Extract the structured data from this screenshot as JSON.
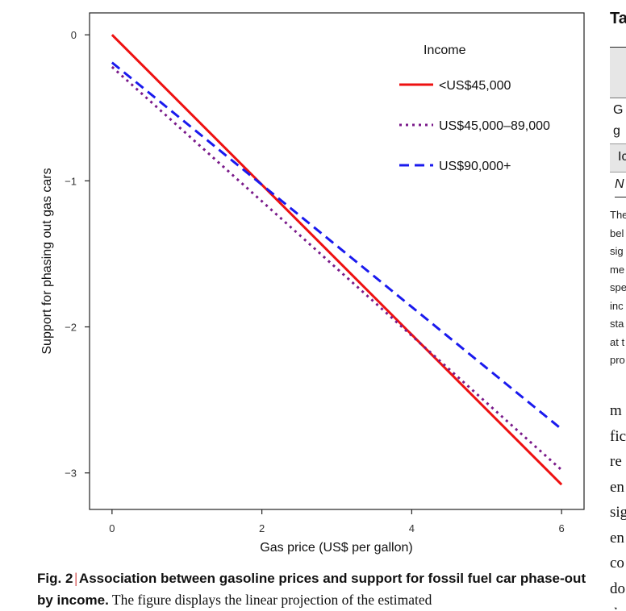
{
  "chart_data": {
    "type": "line",
    "title": "",
    "xlabel": "Gas price (US$ per gallon)",
    "ylabel": "Support for phasing out gas cars",
    "xlim": [
      -0.3,
      6.3
    ],
    "ylim": [
      -3.25,
      0.15
    ],
    "xticks": [
      0,
      2,
      4,
      6
    ],
    "yticks": [
      0,
      -1,
      -2,
      -3
    ],
    "x": [
      0,
      6
    ],
    "grid": false,
    "legend": {
      "title": "Income",
      "placement": "top-right (inside plot)"
    },
    "series": [
      {
        "name": "<US$45,000",
        "values": [
          0.0,
          -3.08
        ],
        "color": "#ee1111",
        "style": "solid"
      },
      {
        "name": "US$45,000–89,000",
        "values": [
          -0.22,
          -2.98
        ],
        "color": "#7a1a8a",
        "style": "dotted"
      },
      {
        "name": "US$90,000+",
        "values": [
          -0.19,
          -2.7
        ],
        "color": "#1a1aee",
        "style": "dashed"
      }
    ]
  },
  "caption": {
    "label": "Fig. 2",
    "title": "Association between gasoline prices and support for fossil fuel car phase-out by income.",
    "text": "The figure displays the linear projection of the estimated"
  },
  "side": {
    "table_title": "Ta",
    "row1_a": "G",
    "row1_b": "g",
    "row2": "Ic",
    "row3": "N",
    "notes": [
      "The",
      "bel",
      "sig",
      "me",
      "spe",
      "inc",
      "sta",
      "at t",
      "pro"
    ],
    "body": [
      "m",
      "fic",
      "re",
      "en",
      "sig",
      "en",
      "co",
      "do",
      "th"
    ]
  }
}
